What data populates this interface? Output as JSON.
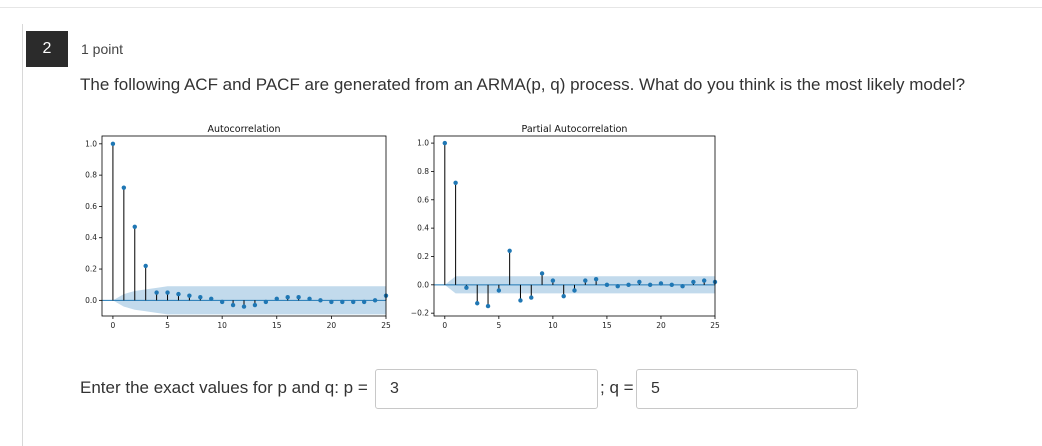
{
  "question": {
    "number": "2",
    "points": "1 point",
    "text": "The following ACF and PACF are generated from an ARMA(p, q) process. What do you think is the most likely model?"
  },
  "answer": {
    "prompt": "Enter the exact values for p and q: p =",
    "q_label": "; q =",
    "p_value": "3",
    "q_value": "5"
  },
  "colors": {
    "stem": "#000000",
    "marker": "#1f77b4",
    "band": "#aecde6",
    "zero_line": "#1f77b4"
  },
  "chart_data": [
    {
      "type": "stem",
      "title": "Autocorrelation",
      "xlabel": "",
      "ylabel": "",
      "xlim": [
        -1,
        25
      ],
      "ylim": [
        -0.1,
        1.05
      ],
      "xticks": [
        0,
        5,
        10,
        15,
        20,
        25
      ],
      "yticks": [
        0.0,
        0.2,
        0.4,
        0.6,
        0.8,
        1.0
      ],
      "ytick_labels": [
        "0.0",
        "0.2",
        "0.4",
        "0.6",
        "0.8",
        "1.0"
      ],
      "lags": [
        0,
        1,
        2,
        3,
        4,
        5,
        6,
        7,
        8,
        9,
        10,
        11,
        12,
        13,
        14,
        15,
        16,
        17,
        18,
        19,
        20,
        21,
        22,
        23,
        24,
        25
      ],
      "values": [
        1.0,
        0.72,
        0.47,
        0.22,
        0.05,
        0.05,
        0.04,
        0.03,
        0.02,
        0.01,
        -0.01,
        -0.03,
        -0.04,
        -0.03,
        -0.01,
        0.01,
        0.02,
        0.02,
        0.01,
        0.0,
        -0.01,
        -0.01,
        -0.01,
        -0.01,
        0.0,
        0.03
      ],
      "confidence_band": [
        0.0,
        0.04,
        0.06,
        0.07,
        0.08,
        0.09,
        0.09,
        0.09,
        0.09,
        0.09,
        0.09,
        0.09,
        0.09,
        0.09,
        0.09,
        0.09,
        0.09,
        0.09,
        0.09,
        0.09,
        0.09,
        0.09,
        0.09,
        0.09,
        0.09,
        0.09
      ]
    },
    {
      "type": "stem",
      "title": "Partial Autocorrelation",
      "xlabel": "",
      "ylabel": "",
      "xlim": [
        -1,
        25
      ],
      "ylim": [
        -0.22,
        1.05
      ],
      "xticks": [
        0,
        5,
        10,
        15,
        20,
        25
      ],
      "yticks": [
        -0.2,
        0.0,
        0.2,
        0.4,
        0.6,
        0.8,
        1.0
      ],
      "ytick_labels": [
        "−0.2",
        "0.0",
        "0.2",
        "0.4",
        "0.6",
        "0.8",
        "1.0"
      ],
      "lags": [
        0,
        1,
        2,
        3,
        4,
        5,
        6,
        7,
        8,
        9,
        10,
        11,
        12,
        13,
        14,
        15,
        16,
        17,
        18,
        19,
        20,
        21,
        22,
        23,
        24,
        25
      ],
      "values": [
        1.0,
        0.72,
        -0.02,
        -0.13,
        -0.15,
        -0.04,
        0.24,
        -0.11,
        -0.09,
        0.08,
        0.03,
        -0.08,
        -0.04,
        0.03,
        0.04,
        0.0,
        -0.01,
        0.0,
        0.02,
        0.0,
        0.01,
        0.0,
        -0.01,
        0.02,
        0.03,
        0.02
      ],
      "confidence_band": [
        0.0,
        0.06,
        0.06,
        0.06,
        0.06,
        0.06,
        0.06,
        0.06,
        0.06,
        0.06,
        0.06,
        0.06,
        0.06,
        0.06,
        0.06,
        0.06,
        0.06,
        0.06,
        0.06,
        0.06,
        0.06,
        0.06,
        0.06,
        0.06,
        0.06,
        0.06
      ]
    }
  ]
}
